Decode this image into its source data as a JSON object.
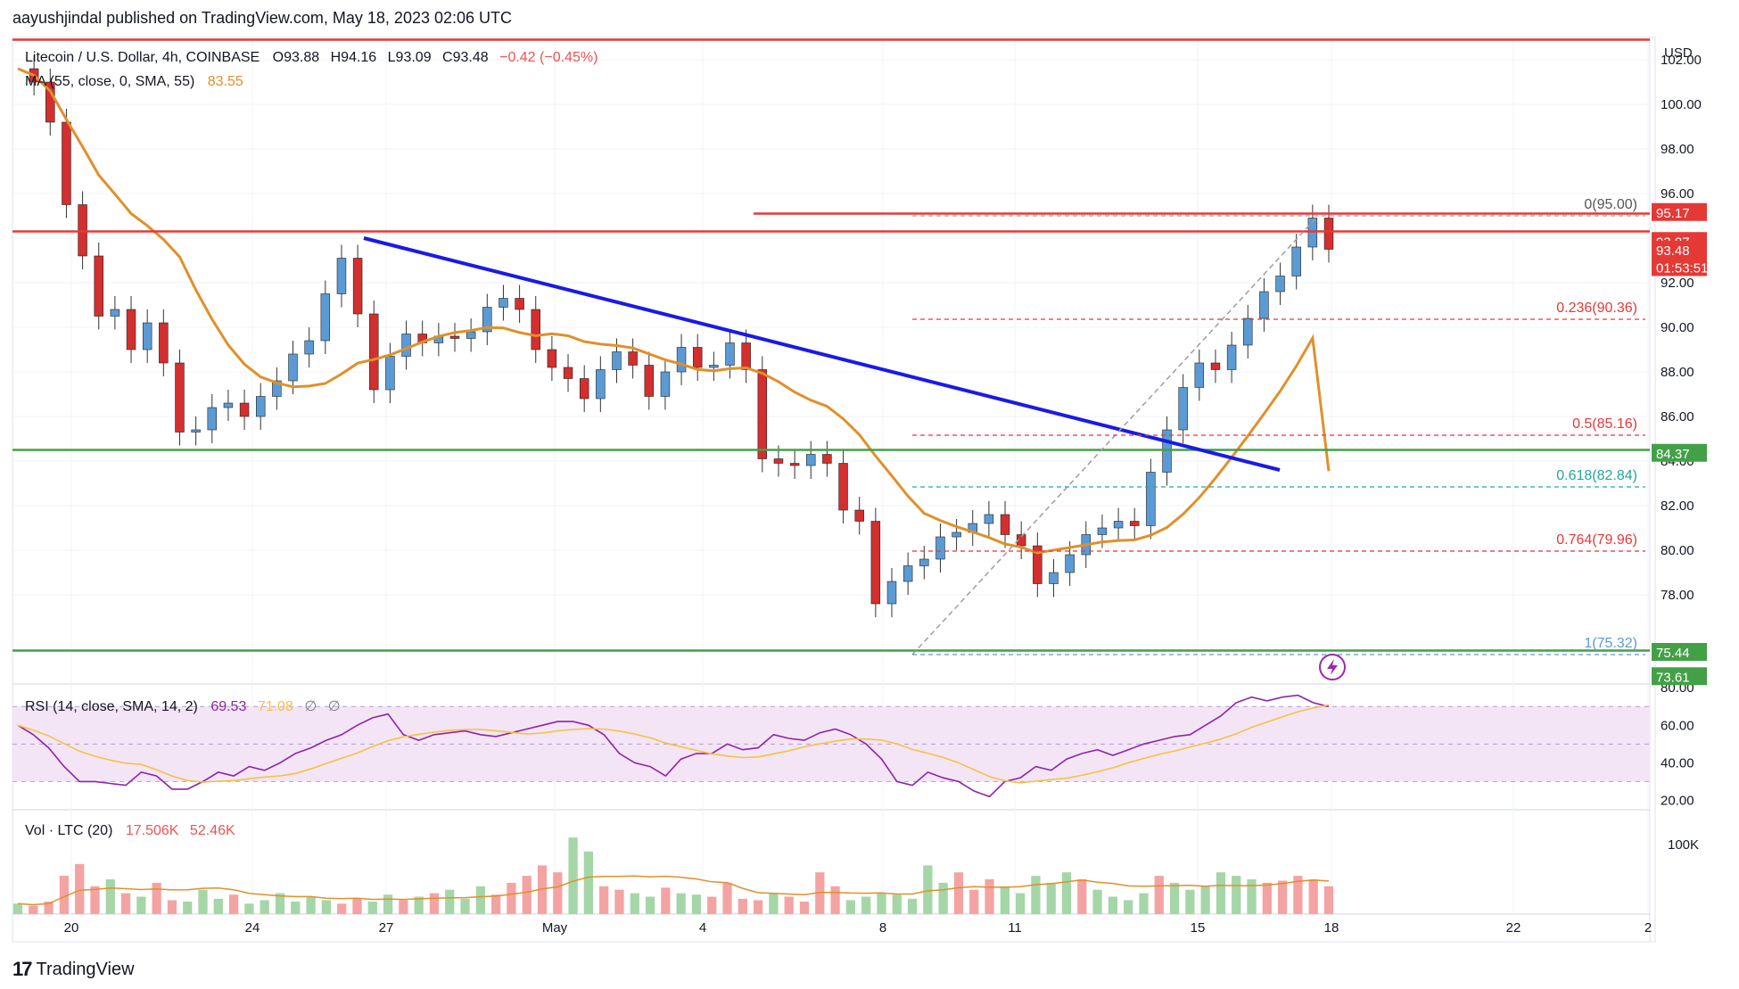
{
  "header": {
    "publisher": "aayushjindal published on TradingView.com, May 18, 2023 02:06 UTC"
  },
  "legend": {
    "symbol": "Litecoin / U.S. Dollar, 4h, COINBASE",
    "open": "O93.88",
    "high": "H94.16",
    "low": "L93.09",
    "close": "C93.48",
    "change": "−0.42 (−0.45%)",
    "ma_label": "MA (55, close, 0, SMA, 55)",
    "ma_value": "83.55"
  },
  "rsi_legend": {
    "label": "RSI (14, close, SMA, 14, 2)",
    "v1": "69.53",
    "v2": "71.08",
    "v3": "∅",
    "v4": "∅"
  },
  "vol_legend": {
    "label": "Vol · LTC (20)",
    "v1": "17.506K",
    "v2": "52.46K"
  },
  "brand": {
    "logo_text": "TradingView",
    "logo_icon": "tradingview-logo-icon"
  },
  "colors": {
    "up": "#26a69a",
    "down": "#ef5350",
    "up_candle": "#5b9bd5",
    "down_candle": "#d32f2f",
    "ma": "#e0902a",
    "trend": "#1a1ae6",
    "resistance": "#e53935",
    "support": "#43a047",
    "rsi_line": "#8e24aa",
    "rsi_ma": "#f5c242",
    "rsi_band": "#f3e5f5"
  },
  "chart_data": [
    {
      "type": "candlestick",
      "title": "Litecoin / U.S. Dollar, 4h, COINBASE",
      "currency": "USD",
      "ylim": [
        74,
        103
      ],
      "y_ticks": [
        "78.00",
        "80.00",
        "82.00",
        "84.00",
        "86.00",
        "88.00",
        "90.00",
        "92.00",
        "94.00",
        "96.00",
        "98.00",
        "100.00",
        "102.00"
      ],
      "x_ticks": [
        "20",
        "24",
        "27",
        "May",
        "4",
        "8",
        "11",
        "15",
        "18",
        "22",
        "2"
      ],
      "price_series_approx": [
        101.6,
        101.0,
        99.2,
        95.5,
        93.2,
        90.5,
        90.8,
        89.0,
        90.2,
        88.4,
        85.3,
        85.4,
        86.4,
        86.6,
        86.0,
        86.9,
        87.6,
        88.8,
        89.4,
        91.5,
        93.1,
        90.6,
        87.2,
        88.7,
        89.7,
        89.3,
        89.6,
        89.5,
        89.8,
        90.9,
        91.3,
        90.8,
        89.0,
        88.2,
        87.7,
        86.8,
        88.1,
        88.9,
        88.3,
        86.9,
        88.0,
        89.1,
        88.2,
        88.3,
        89.3,
        88.1,
        84.1,
        83.9,
        83.8,
        84.3,
        83.9,
        81.8,
        81.3,
        77.6,
        78.6,
        79.3,
        79.6,
        80.6,
        80.8,
        81.2,
        81.6,
        80.7,
        80.2,
        78.5,
        79.0,
        79.8,
        80.7,
        81.0,
        81.3,
        81.1,
        83.5,
        85.4,
        87.3,
        88.4,
        88.1,
        89.2,
        90.4,
        91.6,
        92.3,
        93.6,
        94.9,
        93.5
      ],
      "ma": {
        "name": "MA (55, close, 0, SMA, 55)",
        "last": 83.55
      },
      "horizontal_lines": [
        {
          "role": "resistance",
          "price": 94.3,
          "color": "#e53935"
        },
        {
          "role": "resistance",
          "price": 95.1,
          "color": "#e53935"
        },
        {
          "role": "support",
          "price": 84.5,
          "color": "#43a047"
        },
        {
          "role": "support",
          "price": 75.5,
          "color": "#43a047"
        }
      ],
      "trendline": {
        "from": [
          27,
          94.0
        ],
        "to": [
          18,
          83.6
        ],
        "x_unit": "candle-date",
        "color": "#1a1ae6"
      },
      "fibonacci": [
        {
          "ratio": "0",
          "price": 95.0,
          "label": "0(95.00)"
        },
        {
          "ratio": "0.236",
          "price": 90.36,
          "label": "0.236(90.36)"
        },
        {
          "ratio": "0.5",
          "price": 85.16,
          "label": "0.5(85.16)"
        },
        {
          "ratio": "0.618",
          "price": 82.84,
          "label": "0.618(82.84)"
        },
        {
          "ratio": "0.764",
          "price": 79.96,
          "label": "0.764(79.96)"
        },
        {
          "ratio": "1",
          "price": 75.32,
          "label": "1(75.32)"
        }
      ],
      "price_tags": [
        {
          "label": "95.17",
          "price": 95.17,
          "bg": "#e53935"
        },
        {
          "label": "93.87",
          "price": 93.87,
          "bg": "#e53935"
        },
        {
          "label": "93.48",
          "price": 93.48,
          "bg": "#e53935"
        },
        {
          "label": "01:53:51",
          "price": 92.7,
          "bg": "#e53935"
        },
        {
          "label": "84.37",
          "price": 84.37,
          "bg": "#43a047"
        },
        {
          "label": "75.44",
          "price": 75.44,
          "bg": "#43a047"
        },
        {
          "label": "73.61",
          "price": 74.35,
          "bg": "#43a047"
        }
      ]
    },
    {
      "type": "line",
      "title": "RSI (14, close, SMA, 14, 2)",
      "ylim": [
        15,
        82
      ],
      "y_ticks": [
        "20.00",
        "40.00",
        "60.00",
        "80.00"
      ],
      "band": [
        30,
        70
      ],
      "values_approx": [
        60,
        55,
        48,
        38,
        30,
        30,
        29,
        28,
        35,
        33,
        26,
        26,
        30,
        35,
        33,
        38,
        36,
        40,
        45,
        48,
        52,
        55,
        60,
        64,
        66,
        55,
        52,
        55,
        56,
        57,
        55,
        54,
        56,
        58,
        60,
        62,
        62,
        60,
        55,
        45,
        40,
        38,
        33,
        42,
        45,
        45,
        50,
        47,
        48,
        55,
        53,
        52,
        56,
        58,
        55,
        50,
        42,
        30,
        28,
        35,
        32,
        30,
        25,
        22,
        30,
        32,
        38,
        36,
        42,
        45,
        47,
        44,
        47,
        50,
        52,
        54,
        55,
        60,
        65,
        72,
        75,
        73,
        75,
        76,
        72,
        70
      ]
    },
    {
      "type": "bar",
      "title": "Vol · LTC (20)",
      "y_ticks": [
        "100K"
      ],
      "ylim": [
        0,
        150
      ],
      "values_approx": [
        15,
        12,
        18,
        55,
        72,
        40,
        50,
        30,
        25,
        45,
        20,
        18,
        35,
        22,
        28,
        15,
        20,
        30,
        18,
        25,
        20,
        15,
        22,
        18,
        28,
        20,
        25,
        30,
        35,
        22,
        40,
        28,
        45,
        55,
        70,
        60,
        110,
        90,
        40,
        35,
        30,
        25,
        38,
        30,
        28,
        25,
        45,
        22,
        20,
        30,
        25,
        18,
        60,
        40,
        20,
        25,
        30,
        28,
        22,
        70,
        45,
        60,
        35,
        50,
        40,
        30,
        55,
        45,
        60,
        50,
        35,
        25,
        20,
        30,
        55,
        45,
        35,
        40,
        60,
        55,
        50,
        45,
        48,
        55,
        50,
        40
      ]
    }
  ]
}
